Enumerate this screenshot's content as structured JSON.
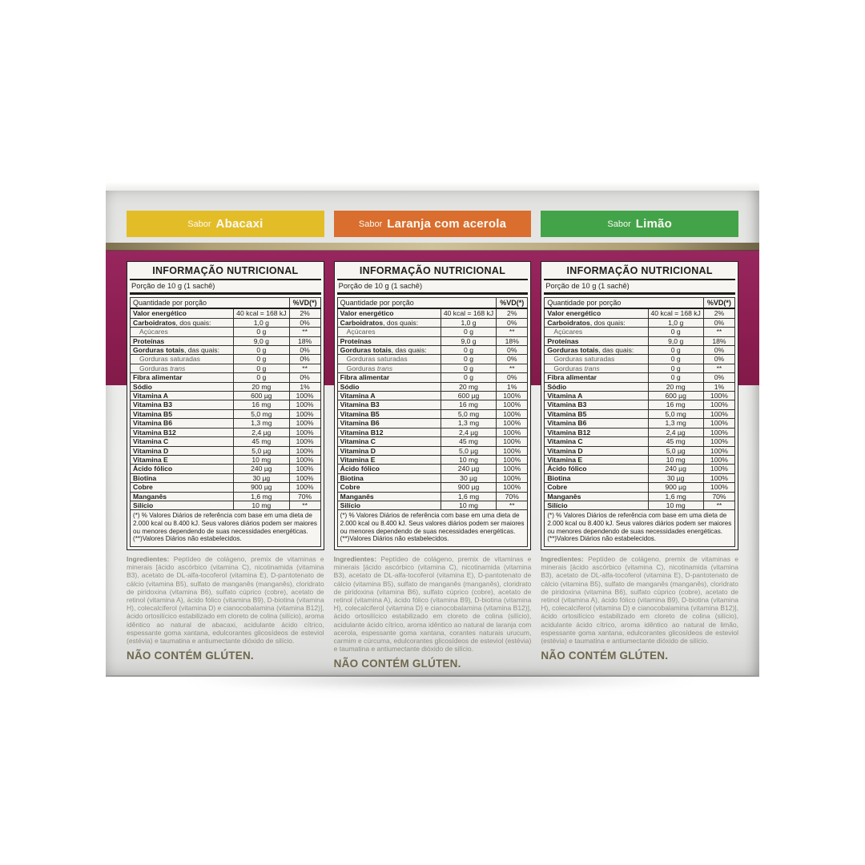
{
  "package": {
    "colors": {
      "abacaxi_bar": "#e3bd28",
      "laranja_bar": "#d96e2e",
      "limao_bar": "#43a349",
      "maroon_band": "#8d1e52",
      "gold_stripe": "#b3a478",
      "box_gray": "#e9e9e7"
    },
    "flavors": [
      {
        "prefix": "Sabor",
        "name": "Abacaxi",
        "color": "#e3bd28"
      },
      {
        "prefix": "Sabor",
        "name": "Laranja com acerola",
        "color": "#d96e2e"
      },
      {
        "prefix": "Sabor",
        "name": "Limão",
        "color": "#43a349"
      }
    ],
    "nutrition_table": {
      "title": "INFORMAÇÃO NUTRICIONAL",
      "portion": "Porção de 10 g (1 sachê)",
      "header": {
        "quantity": "Quantidade por porção",
        "dv": "%VD(*)"
      },
      "rows": [
        {
          "bold": "Valor energético",
          "rest": "",
          "value": "40 kcal = 168 kJ",
          "vd": "2%"
        },
        {
          "bold": "Carboidratos",
          "rest": ", dos quais:",
          "value": "1,0 g",
          "vd": "0%"
        },
        {
          "rest": "Açúcares",
          "value": "0 g",
          "vd": "**",
          "indent": true,
          "muted": true
        },
        {
          "bold": "Proteínas",
          "rest": "",
          "value": "9,0 g",
          "vd": "18%"
        },
        {
          "bold": "Gorduras totais",
          "rest": ", das quais:",
          "value": "0 g",
          "vd": "0%"
        },
        {
          "rest": "Gorduras saturadas",
          "value": "0 g",
          "vd": "0%",
          "indent": true,
          "muted": true
        },
        {
          "rest": "Gorduras ",
          "italic": "trans",
          "value": "0 g",
          "vd": "**",
          "indent": true,
          "muted": true
        },
        {
          "bold": "Fibra alimentar",
          "rest": "",
          "value": "0 g",
          "vd": "0%"
        },
        {
          "bold": "Sódio",
          "rest": "",
          "value": "20 mg",
          "vd": "1%"
        },
        {
          "bold": "Vitamina A",
          "rest": "",
          "value": "600 µg",
          "vd": "100%"
        },
        {
          "bold": "Vitamina B3",
          "rest": "",
          "value": "16 mg",
          "vd": "100%"
        },
        {
          "bold": "Vitamina B5",
          "rest": "",
          "value": "5,0 mg",
          "vd": "100%"
        },
        {
          "bold": "Vitamina B6",
          "rest": "",
          "value": "1,3 mg",
          "vd": "100%"
        },
        {
          "bold": "Vitamina B12",
          "rest": "",
          "value": "2,4 µg",
          "vd": "100%"
        },
        {
          "bold": "Vitamina C",
          "rest": "",
          "value": "45 mg",
          "vd": "100%"
        },
        {
          "bold": "Vitamina D",
          "rest": "",
          "value": "5,0 µg",
          "vd": "100%"
        },
        {
          "bold": "Vitamina E",
          "rest": "",
          "value": "10 mg",
          "vd": "100%"
        },
        {
          "bold": "Ácido fólico",
          "rest": "",
          "value": "240 µg",
          "vd": "100%"
        },
        {
          "bold": "Biotina",
          "rest": "",
          "value": "30 µg",
          "vd": "100%"
        },
        {
          "bold": "Cobre",
          "rest": "",
          "value": "900 µg",
          "vd": "100%"
        },
        {
          "bold": "Manganês",
          "rest": "",
          "value": "1,6 mg",
          "vd": "70%"
        },
        {
          "bold": "Silício",
          "rest": "",
          "value": "10 mg",
          "vd": "**"
        }
      ],
      "footnote": "(*) % Valores Diários de referência com base em uma dieta de 2.000 kcal ou 8.400 kJ. Seus valores diários podem ser maiores ou menores dependendo de suas necessidades energéticas. (**)Valores Diários não estabelecidos."
    },
    "ingredients_columns": [
      {
        "label": "Ingredientes:",
        "text": "Peptídeo de colágeno, premix de vitaminas e minerais [ácido ascórbico (vitamina C), nicotinamida (vitamina B3), acetato de DL-alfa-tocoferol (vitamina E), D-pantotenato de cálcio (vitamina B5), sulfato de manganês (manganês), cloridrato de piridoxina (vitamina B6), sulfato cúprico (cobre), acetato de retinol (vitamina A), ácido fólico (vitamina B9), D-biotina (vitamina H), colecalciferol (vitamina D) e cianocobalamina (vitamina B12)], ácido ortosilícico estabilizado em cloreto de colina (silício), aroma idêntico ao natural de abacaxi, acidulante ácido cítrico, espessante goma xantana, edulcorantes glicosídeos de esteviol (estévia) e taumatina e antiumectante dióxido de silício.",
        "gluten": "NÃO CONTÉM GLÚTEN."
      },
      {
        "label": "Ingredientes:",
        "text": "Peptídeo de colágeno, premix de vitaminas e minerais [ácido ascórbico (vitamina C), nicotinamida (vitamina B3), acetato de DL-alfa-tocoferol (vitamina E), D-pantotenato de cálcio (vitamina B5), sulfato de manganês (manganês), cloridrato de piridoxina (vitamina B6), sulfato cúprico (cobre), acetato de retinol (vitamina A), ácido fólico (vitamina B9), D-biotina (vitamina H), colecalciferol (vitamina D) e cianocobalamina (vitamina B12)], ácido ortosilícico estabilizado em cloreto de colina (silício), acidulante ácido cítrico, aroma idêntico ao natural de laranja com acerola, espessante goma xantana, corantes naturais urucum, carmim e cúrcuma, edulcorantes glicosídeos de esteviol (estévia) e taumatina e antiumectante dióxido de silício.",
        "gluten": "NÃO CONTÉM GLÚTEN."
      },
      {
        "label": "Ingredientes:",
        "text": "Peptídeo de colágeno, premix de vitaminas e minerais [ácido ascórbico (vitamina C), nicotinamida (vitamina B3), acetato de DL-alfa-tocoferol (vitamina E), D-pantotenato de cálcio (vitamina B5), sulfato de manganês (manganês), cloridrato de piridoxina (vitamina B6), sulfato cúprico (cobre), acetato de retinol (vitamina A), ácido fólico (vitamina B9), D-biotina (vitamina H), colecalciferol (vitamina D) e cianocobalamina (vitamina B12)], ácido ortosilícico estabilizado em cloreto de colina (silício), acidulante ácido cítrico, aroma idêntico ao natural de limão, espessante goma xantana, edulcorantes glicosídeos de esteviol (estévia) e taumatina e antiumectante dióxido de silício.",
        "gluten": "NÃO CONTÉM GLÚTEN."
      }
    ]
  }
}
